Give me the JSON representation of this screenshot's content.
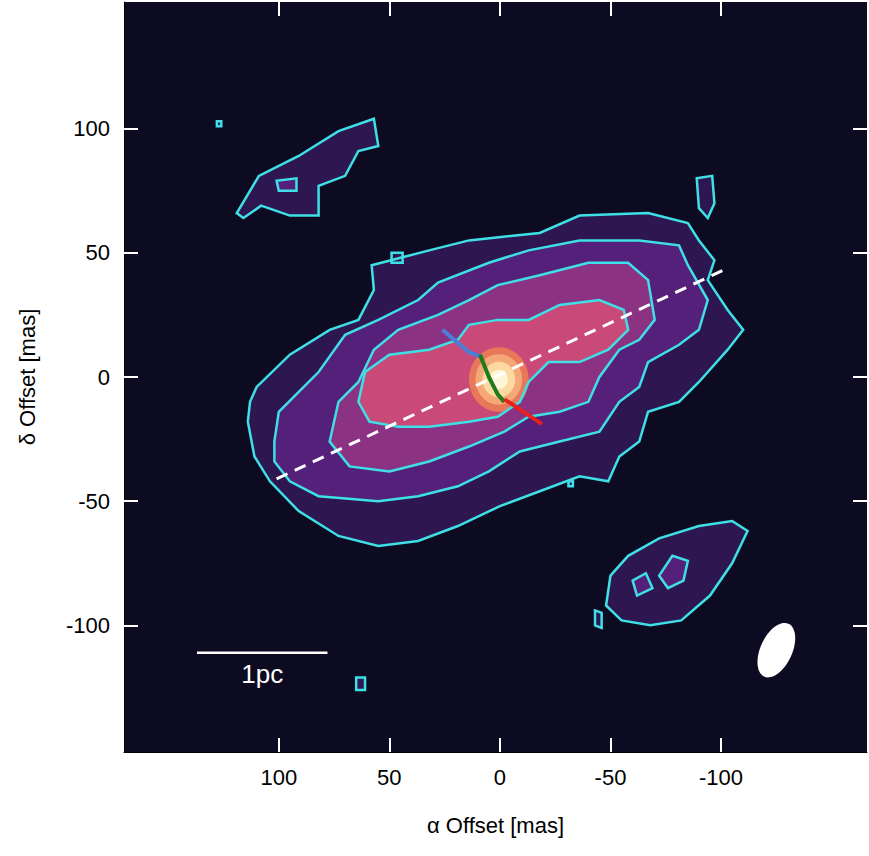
{
  "chart_data": {
    "type": "contour",
    "x_label": "α Offset [mas]",
    "y_label": "δ Offset [mas]",
    "xlim": [
      170,
      -166
    ],
    "ylim": [
      -151,
      151
    ],
    "xticks": [
      100,
      50,
      0,
      -50,
      -100
    ],
    "yticks": [
      -100,
      -50,
      0,
      50,
      100
    ],
    "contours": {
      "color": "#3ee0e6",
      "levels": [
        [
          [
            [
              113,
              -10
            ],
            [
              110,
              -4
            ],
            [
              95,
              9
            ],
            [
              77,
              19
            ],
            [
              64,
              23
            ],
            [
              57,
              35
            ],
            [
              58,
              45
            ],
            [
              32,
              51
            ],
            [
              14,
              55
            ],
            [
              -18,
              58
            ],
            [
              -36,
              65
            ],
            [
              -67,
              66
            ],
            [
              -85,
              62
            ],
            [
              -90,
              55
            ],
            [
              -97,
              47
            ],
            [
              -94,
              39
            ],
            [
              -103,
              27
            ],
            [
              -110,
              19
            ],
            [
              -103,
              11
            ],
            [
              -90,
              -2
            ],
            [
              -81,
              -10
            ],
            [
              -67,
              -14
            ],
            [
              -63,
              -26
            ],
            [
              -54,
              -32
            ],
            [
              -49,
              -42
            ],
            [
              -36,
              -40
            ],
            [
              -18,
              -46
            ],
            [
              0,
              -52
            ],
            [
              19,
              -60
            ],
            [
              37,
              -66
            ],
            [
              55,
              -68
            ],
            [
              73,
              -64
            ],
            [
              91,
              -54
            ],
            [
              104,
              -42
            ],
            [
              111,
              -32
            ],
            [
              114,
              -18
            ]
          ],
          [
            [
              119,
              66
            ],
            [
              109,
              81
            ],
            [
              91,
              89
            ],
            [
              73,
              99
            ],
            [
              57,
              104
            ],
            [
              55,
              93
            ],
            [
              64,
              91
            ],
            [
              70,
              81
            ],
            [
              82,
              77
            ],
            [
              82,
              65
            ],
            [
              95,
              65
            ],
            [
              108,
              69
            ],
            [
              116,
              64
            ]
          ],
          [
            [
              -48,
              -92
            ],
            [
              -50,
              -80
            ],
            [
              -58,
              -72
            ],
            [
              -72,
              -65
            ],
            [
              -90,
              -60
            ],
            [
              -105,
              -58
            ],
            [
              -112,
              -62
            ],
            [
              -105,
              -75
            ],
            [
              -95,
              -88
            ],
            [
              -82,
              -98
            ],
            [
              -68,
              -100
            ],
            [
              -55,
              -98
            ]
          ],
          [
            [
              49,
              50
            ],
            [
              44,
              50
            ],
            [
              44,
              46
            ],
            [
              49,
              46
            ]
          ],
          [
            [
              -89,
              80
            ],
            [
              -96,
              81
            ],
            [
              -97,
              70
            ],
            [
              -94,
              64
            ],
            [
              -90,
              68
            ]
          ],
          [
            [
              -43,
              -94
            ],
            [
              -46,
              -95
            ],
            [
              -46,
              -101
            ],
            [
              -43,
              -100
            ]
          ],
          [
            [
              -31,
              -42
            ],
            [
              -33,
              -42
            ],
            [
              -33,
              -44
            ],
            [
              -31,
              -44
            ]
          ],
          [
            [
              126,
              103
            ],
            [
              128,
              103
            ],
            [
              128,
              101
            ],
            [
              126,
              101
            ]
          ],
          [
            [
              61,
              -121
            ],
            [
              65,
              -121
            ],
            [
              65,
              -126
            ],
            [
              61,
              -126
            ]
          ]
        ],
        [
          [
            [
              102,
              -26
            ],
            [
              100,
              -14
            ],
            [
              82,
              2
            ],
            [
              70,
              17
            ],
            [
              55,
              23
            ],
            [
              37,
              31
            ],
            [
              28,
              38
            ],
            [
              5,
              46
            ],
            [
              -13,
              51
            ],
            [
              -36,
              55
            ],
            [
              -63,
              55
            ],
            [
              -81,
              53
            ],
            [
              -85,
              45
            ],
            [
              -94,
              31
            ],
            [
              -90,
              19
            ],
            [
              -81,
              13
            ],
            [
              -67,
              6
            ],
            [
              -63,
              -4
            ],
            [
              -54,
              -10
            ],
            [
              -45,
              -22
            ],
            [
              -27,
              -26
            ],
            [
              -9,
              -30
            ],
            [
              5,
              -38
            ],
            [
              19,
              -44
            ],
            [
              37,
              -48
            ],
            [
              55,
              -50
            ],
            [
              82,
              -48
            ],
            [
              95,
              -42
            ],
            [
              102,
              -34
            ]
          ],
          [
            [
              101,
              79
            ],
            [
              92,
              80
            ],
            [
              92,
              75
            ],
            [
              100,
              75
            ]
          ],
          [
            [
              -60,
              -82
            ],
            [
              -66,
              -79
            ],
            [
              -69,
              -85
            ],
            [
              -62,
              -88
            ]
          ],
          [
            [
              -72,
              -80
            ],
            [
              -78,
              -72
            ],
            [
              -85,
              -74
            ],
            [
              -83,
              -82
            ],
            [
              -76,
              -85
            ]
          ]
        ],
        [
          [
            [
              77,
              -26
            ],
            [
              73,
              -10
            ],
            [
              64,
              -2
            ],
            [
              57,
              11
            ],
            [
              46,
              19
            ],
            [
              28,
              25
            ],
            [
              14,
              31
            ],
            [
              1,
              37
            ],
            [
              -18,
              41
            ],
            [
              -40,
              46
            ],
            [
              -58,
              46
            ],
            [
              -67,
              39
            ],
            [
              -70,
              23
            ],
            [
              -63,
              15
            ],
            [
              -54,
              11
            ],
            [
              -45,
              0
            ],
            [
              -40,
              -10
            ],
            [
              -27,
              -14
            ],
            [
              -13,
              -16
            ],
            [
              -2,
              -22
            ],
            [
              14,
              -28
            ],
            [
              32,
              -34
            ],
            [
              50,
              -38
            ],
            [
              68,
              -36
            ]
          ]
        ],
        [
          [
            [
              64,
              -10
            ],
            [
              61,
              2
            ],
            [
              50,
              9
            ],
            [
              32,
              11
            ],
            [
              19,
              15
            ],
            [
              14,
              21
            ],
            [
              1,
              23
            ],
            [
              -13,
              23
            ],
            [
              -27,
              29
            ],
            [
              -45,
              31
            ],
            [
              -56,
              27
            ],
            [
              -58,
              19
            ],
            [
              -49,
              11
            ],
            [
              -36,
              6
            ],
            [
              -22,
              6
            ],
            [
              -13,
              -2
            ],
            [
              -9,
              -10
            ],
            [
              1,
              -16
            ],
            [
              14,
              -18
            ],
            [
              32,
              -20
            ],
            [
              46,
              -20
            ],
            [
              59,
              -18
            ]
          ]
        ]
      ]
    },
    "core": {
      "x": 0.5,
      "y": -1,
      "radius": [
        13.5,
        13
      ]
    },
    "lines": [
      {
        "color": "#ffffff",
        "line_style": "dashed",
        "points": [
          [
            101,
            -41
          ],
          [
            -101,
            43
          ]
        ]
      },
      {
        "color": "#4a7fd8",
        "line_style": "solid",
        "points": [
          [
            26,
            19
          ],
          [
            14,
            10
          ],
          [
            8,
            8
          ]
        ]
      },
      {
        "color": "#1e7b1e",
        "line_style": "solid",
        "points": [
          [
            9,
            9
          ],
          [
            5,
            0
          ],
          [
            1,
            -7
          ],
          [
            -2,
            -10
          ]
        ]
      },
      {
        "color": "#e8201e",
        "line_style": "solid",
        "points": [
          [
            -2,
            -9
          ],
          [
            -9,
            -13
          ],
          [
            -19,
            -19
          ]
        ]
      }
    ],
    "scale_bar": {
      "label": "1pc",
      "x": [
        137,
        78
      ],
      "y": -111
    },
    "beam": {
      "x": -125,
      "y": -110,
      "major": 24,
      "minor": 14,
      "pa": -30
    }
  }
}
